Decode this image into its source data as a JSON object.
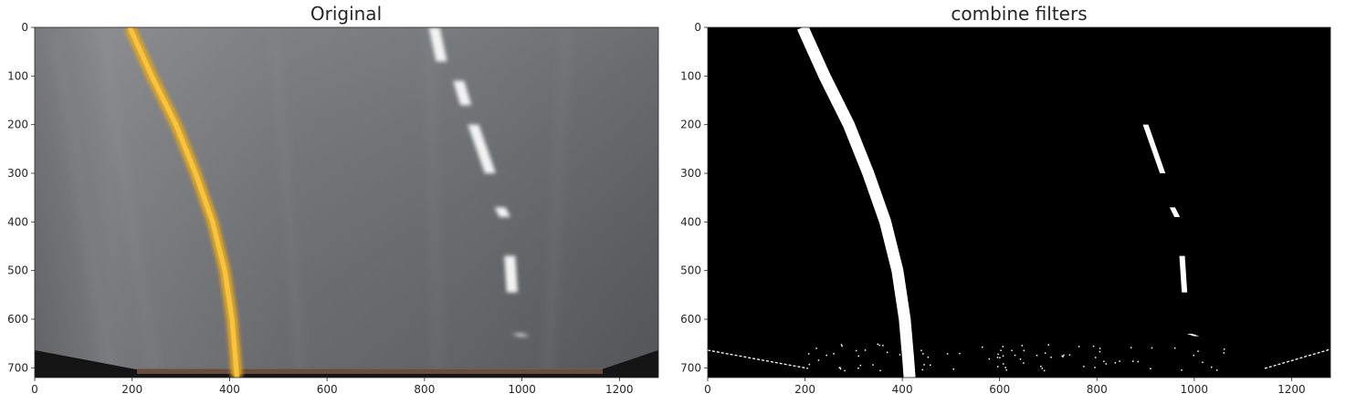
{
  "chart_data": [
    {
      "type": "image",
      "title": "Original",
      "xlabel": "",
      "ylabel": "",
      "xlim": [
        0,
        1280
      ],
      "ylim": [
        720,
        0
      ],
      "xticks": [
        0,
        200,
        400,
        600,
        800,
        1000,
        1200
      ],
      "yticks": [
        0,
        100,
        200,
        300,
        400,
        500,
        600,
        700
      ],
      "content": "warped top-down road view",
      "lane_lines": [
        {
          "name": "yellow-left-lane",
          "color": "#e8b024",
          "x": [
            195,
            240,
            290,
            330,
            365,
            390,
            405,
            412,
            415
          ],
          "y": [
            0,
            100,
            200,
            300,
            400,
            500,
            600,
            680,
            720
          ]
        },
        {
          "name": "white-dashed-lane",
          "color": "#f4f4f4",
          "dashes": [
            {
              "x": [
                820,
                835
              ],
              "y": [
                0,
                70
              ]
            },
            {
              "x": [
                870,
                885
              ],
              "y": [
                110,
                160
              ]
            },
            {
              "x": [
                900,
                935
              ],
              "y": [
                200,
                300
              ]
            },
            {
              "x": [
                955,
                965
              ],
              "y": [
                370,
                390
              ]
            },
            {
              "x": [
                975,
                980
              ],
              "y": [
                470,
                545
              ]
            },
            {
              "x": [
                990,
                1005
              ],
              "y": [
                630,
                635
              ]
            }
          ]
        }
      ]
    },
    {
      "type": "image",
      "title": "combine filters",
      "xlabel": "",
      "ylabel": "",
      "xlim": [
        0,
        1280
      ],
      "ylim": [
        720,
        0
      ],
      "xticks": [
        0,
        200,
        400,
        600,
        800,
        1000,
        1200
      ],
      "yticks": [
        0,
        100,
        200,
        300,
        400,
        500,
        600,
        700
      ],
      "content": "binary thresholded image",
      "colors": {
        "background": "#000000",
        "foreground": "#ffffff"
      }
    }
  ]
}
